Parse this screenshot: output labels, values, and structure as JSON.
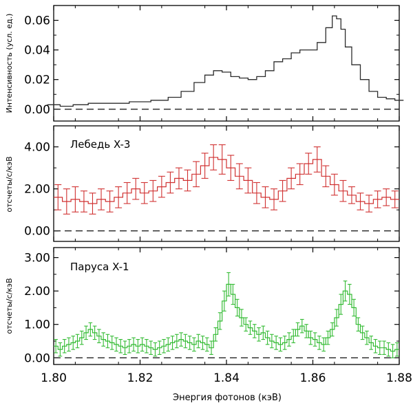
{
  "chart_data": [
    {
      "type": "line",
      "panel": "top",
      "xlabel": "Энергия фотонов (кэВ)",
      "ylabel": "Интенсивность (усл. ед.)",
      "xlim": [
        1.8,
        1.88
      ],
      "ylim": [
        -0.008,
        0.07
      ],
      "yticks": [
        "0.00",
        "0.02",
        "0.04",
        "0.06"
      ],
      "xticks": [
        "1.80",
        "1.82",
        "1.84",
        "1.86",
        "1.88"
      ],
      "baseline": 0,
      "color": "#2b2b2b",
      "series": [
        {
          "x": [
            1.8,
            1.803,
            1.806,
            1.81,
            1.815,
            1.82,
            1.825,
            1.828,
            1.831,
            1.834,
            1.836,
            1.838,
            1.84,
            1.842,
            1.844,
            1.846,
            1.848,
            1.85,
            1.852,
            1.854,
            1.856,
            1.858,
            1.86,
            1.862,
            1.864,
            1.865,
            1.866,
            1.867,
            1.868,
            1.87,
            1.872,
            1.874,
            1.876,
            1.878,
            1.88
          ],
          "y": [
            0.003,
            0.002,
            0.003,
            0.004,
            0.004,
            0.005,
            0.006,
            0.008,
            0.012,
            0.018,
            0.023,
            0.026,
            0.025,
            0.022,
            0.021,
            0.02,
            0.022,
            0.026,
            0.032,
            0.034,
            0.038,
            0.04,
            0.04,
            0.045,
            0.055,
            0.063,
            0.061,
            0.054,
            0.042,
            0.03,
            0.02,
            0.012,
            0.008,
            0.007,
            0.006
          ]
        }
      ]
    },
    {
      "type": "line",
      "panel": "middle",
      "annotation": "Лебедь X-3",
      "ylabel": "отсчеты/с/кэВ",
      "xlim": [
        1.8,
        1.88
      ],
      "ylim": [
        -0.5,
        5.0
      ],
      "yticks": [
        "0.00",
        "2.00",
        "4.00"
      ],
      "baseline": 0,
      "color": "#d03030",
      "series": [
        {
          "x": [
            1.801,
            1.803,
            1.805,
            1.807,
            1.809,
            1.811,
            1.813,
            1.815,
            1.817,
            1.819,
            1.821,
            1.823,
            1.825,
            1.827,
            1.829,
            1.831,
            1.833,
            1.835,
            1.837,
            1.839,
            1.841,
            1.843,
            1.845,
            1.847,
            1.849,
            1.851,
            1.853,
            1.855,
            1.857,
            1.859,
            1.861,
            1.863,
            1.865,
            1.867,
            1.869,
            1.871,
            1.873,
            1.875,
            1.877,
            1.879
          ],
          "y": [
            1.6,
            1.4,
            1.5,
            1.4,
            1.3,
            1.5,
            1.4,
            1.6,
            1.8,
            2.0,
            1.8,
            1.9,
            2.1,
            2.3,
            2.5,
            2.4,
            2.7,
            3.1,
            3.5,
            3.4,
            3.0,
            2.6,
            2.4,
            1.8,
            1.6,
            1.5,
            1.9,
            2.5,
            2.7,
            3.2,
            3.4,
            2.6,
            2.2,
            1.9,
            1.7,
            1.4,
            1.3,
            1.5,
            1.6,
            1.5
          ],
          "err": [
            0.6,
            0.6,
            0.6,
            0.5,
            0.5,
            0.5,
            0.5,
            0.5,
            0.5,
            0.5,
            0.5,
            0.5,
            0.5,
            0.5,
            0.5,
            0.5,
            0.6,
            0.6,
            0.6,
            0.7,
            0.6,
            0.6,
            0.6,
            0.5,
            0.5,
            0.5,
            0.5,
            0.5,
            0.5,
            0.5,
            0.6,
            0.5,
            0.5,
            0.5,
            0.4,
            0.4,
            0.4,
            0.4,
            0.4,
            0.4
          ]
        }
      ]
    },
    {
      "type": "line",
      "panel": "bottom",
      "annotation": "Паруса X-1",
      "ylabel": "отсчеты/с/кэВ",
      "xlim": [
        1.8,
        1.88
      ],
      "ylim": [
        -0.2,
        3.3
      ],
      "yticks": [
        "0.00",
        "1.00",
        "2.00",
        "3.00"
      ],
      "baseline": 0,
      "color": "#33bb33",
      "series": [
        {
          "x": [
            1.8005,
            1.8015,
            1.8025,
            1.8035,
            1.8045,
            1.8055,
            1.8065,
            1.8075,
            1.8085,
            1.8095,
            1.8105,
            1.8115,
            1.8125,
            1.8135,
            1.8145,
            1.8155,
            1.8165,
            1.8175,
            1.8185,
            1.8195,
            1.8205,
            1.8215,
            1.8225,
            1.8235,
            1.8245,
            1.8255,
            1.8265,
            1.8275,
            1.8285,
            1.8295,
            1.8305,
            1.8315,
            1.8325,
            1.8335,
            1.8345,
            1.8355,
            1.8365,
            1.8375,
            1.8385,
            1.8395,
            1.8405,
            1.8415,
            1.8425,
            1.8435,
            1.8445,
            1.8455,
            1.8465,
            1.8475,
            1.8485,
            1.8495,
            1.8505,
            1.8515,
            1.8525,
            1.8535,
            1.8545,
            1.8555,
            1.8565,
            1.8575,
            1.8585,
            1.8595,
            1.8605,
            1.8615,
            1.8625,
            1.8635,
            1.8645,
            1.8655,
            1.8665,
            1.8675,
            1.8685,
            1.8695,
            1.8705,
            1.8715,
            1.8725,
            1.8735,
            1.8745,
            1.8755,
            1.8765,
            1.8775,
            1.8785,
            1.8795
          ],
          "y": [
            0.35,
            0.25,
            0.35,
            0.4,
            0.45,
            0.5,
            0.6,
            0.75,
            0.85,
            0.75,
            0.65,
            0.55,
            0.5,
            0.45,
            0.4,
            0.35,
            0.3,
            0.35,
            0.4,
            0.35,
            0.4,
            0.35,
            0.3,
            0.25,
            0.3,
            0.35,
            0.4,
            0.45,
            0.5,
            0.55,
            0.5,
            0.45,
            0.4,
            0.5,
            0.45,
            0.4,
            0.3,
            0.7,
            1.1,
            1.7,
            2.2,
            1.9,
            1.5,
            1.2,
            1.0,
            0.9,
            0.8,
            0.7,
            0.75,
            0.6,
            0.5,
            0.45,
            0.4,
            0.45,
            0.55,
            0.65,
            0.85,
            0.95,
            0.8,
            0.6,
            0.55,
            0.45,
            0.4,
            0.6,
            0.85,
            1.2,
            1.6,
            2.0,
            1.9,
            1.5,
            1.0,
            0.75,
            0.6,
            0.45,
            0.35,
            0.3,
            0.3,
            0.25,
            0.2,
            0.25
          ],
          "err": [
            0.2,
            0.2,
            0.2,
            0.2,
            0.2,
            0.2,
            0.2,
            0.2,
            0.2,
            0.2,
            0.2,
            0.2,
            0.2,
            0.2,
            0.2,
            0.2,
            0.2,
            0.2,
            0.2,
            0.2,
            0.2,
            0.2,
            0.2,
            0.2,
            0.2,
            0.2,
            0.2,
            0.2,
            0.2,
            0.2,
            0.2,
            0.2,
            0.2,
            0.2,
            0.2,
            0.2,
            0.2,
            0.2,
            0.25,
            0.3,
            0.35,
            0.3,
            0.25,
            0.25,
            0.2,
            0.2,
            0.2,
            0.2,
            0.2,
            0.2,
            0.2,
            0.2,
            0.2,
            0.2,
            0.2,
            0.2,
            0.2,
            0.2,
            0.2,
            0.2,
            0.2,
            0.2,
            0.2,
            0.2,
            0.2,
            0.25,
            0.3,
            0.3,
            0.3,
            0.25,
            0.2,
            0.2,
            0.2,
            0.2,
            0.2,
            0.2,
            0.2,
            0.2,
            0.2,
            0.2
          ]
        }
      ]
    }
  ]
}
